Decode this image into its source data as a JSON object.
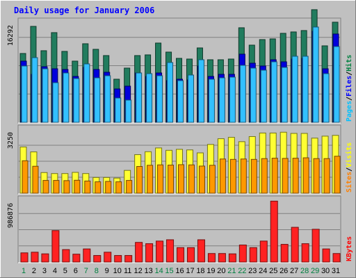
{
  "chart_data": {
    "type": "bar",
    "title": "Daily usage for January 2006",
    "categories": [
      "1",
      "2",
      "3",
      "4",
      "5",
      "6",
      "7",
      "8",
      "9",
      "10",
      "11",
      "12",
      "13",
      "14",
      "15",
      "16",
      "17",
      "18",
      "19",
      "20",
      "21",
      "22",
      "23",
      "24",
      "25",
      "26",
      "27",
      "28",
      "29",
      "30",
      "31"
    ],
    "weekend_days": [
      "1",
      "7",
      "8",
      "14",
      "15",
      "21",
      "22",
      "28",
      "29"
    ],
    "panels": [
      {
        "id": "hits-panel",
        "max_label": "16292",
        "ylim": [
          0,
          16292
        ],
        "legend": [
          {
            "text": "Pages",
            "color": "#00c0ff"
          },
          {
            "text": "Files",
            "color": "#0000ff"
          },
          {
            "text": "Hits",
            "color": "#008040"
          }
        ],
        "series": [
          {
            "name": "Hits",
            "color": "#217c5e",
            "values": [
              9900,
              13800,
              10300,
              12900,
              10200,
              8800,
              11300,
              10500,
              9600,
              6200,
              7800,
              9600,
              9700,
              11400,
              10100,
              9200,
              9100,
              10700,
              9000,
              9000,
              9100,
              13600,
              11100,
              11900,
              12000,
              12800,
              13000,
              13200,
              16200,
              11000,
              14400
            ]
          },
          {
            "name": "Files",
            "color": "#0000dd",
            "values": [
              8800,
              6900,
              8000,
              7700,
              7600,
              6600,
              7900,
              7600,
              7200,
              4800,
              5200,
              7100,
              6600,
              7100,
              6000,
              6200,
              6100,
              8100,
              6600,
              6900,
              6900,
              9800,
              8500,
              8100,
              9000,
              8700,
              9100,
              9200,
              13100,
              7700,
              12700
            ]
          },
          {
            "name": "Pages",
            "color": "#33c0ff",
            "values": [
              8100,
              9300,
              7700,
              5700,
              7100,
              6300,
              8400,
              6400,
              6700,
              3500,
              3200,
              7100,
              7000,
              6700,
              8600,
              6000,
              6800,
              9000,
              6200,
              6400,
              6500,
              8200,
              7800,
              7500,
              8700,
              7900,
              9500,
              9500,
              13700,
              7000,
              10900
            ]
          }
        ]
      },
      {
        "id": "visits-panel",
        "max_label": "3250",
        "ylim": [
          0,
          3250
        ],
        "legend": [
          {
            "text": "Sites",
            "color": "#ff8000"
          },
          {
            "text": "Visits",
            "color": "#ffff00"
          }
        ],
        "series": [
          {
            "name": "Visits",
            "color": "#ffff33",
            "values": [
              2350,
              2100,
              1050,
              1000,
              1000,
              1060,
              1000,
              800,
              800,
              770,
              1160,
              1960,
              2110,
              2300,
              2180,
              2230,
              2200,
              2050,
              2480,
              2770,
              2840,
              2620,
              2880,
              3060,
              3060,
              3100,
              3040,
              3040,
              2800,
              2900,
              2940
            ]
          },
          {
            "name": "Sites",
            "color": "#ff9900",
            "values": [
              1650,
              1370,
              650,
              650,
              640,
              660,
              620,
              580,
              600,
              580,
              650,
              1360,
              1420,
              1440,
              1430,
              1450,
              1440,
              1380,
              1420,
              1740,
              1720,
              1740,
              1720,
              1760,
              1780,
              1770,
              1780,
              1800,
              1760,
              1760,
              1880
            ]
          }
        ]
      },
      {
        "id": "kbytes-panel",
        "max_label": "986876",
        "ylim": [
          0,
          986876
        ],
        "legend": [
          {
            "text": "KBytes",
            "color": "#ff0000"
          }
        ],
        "series": [
          {
            "name": "KBytes",
            "color": "#ff2222",
            "values": [
              140000,
              150000,
              125000,
              480000,
              190000,
              120000,
              200000,
              100000,
              150000,
              100000,
              100000,
              300000,
              280000,
              320000,
              340000,
              220000,
              220000,
              340000,
              130000,
              130000,
              125000,
              260000,
              220000,
              320000,
              930000,
              270000,
              530000,
              280000,
              500000,
              200000,
              130000
            ]
          }
        ]
      }
    ]
  }
}
